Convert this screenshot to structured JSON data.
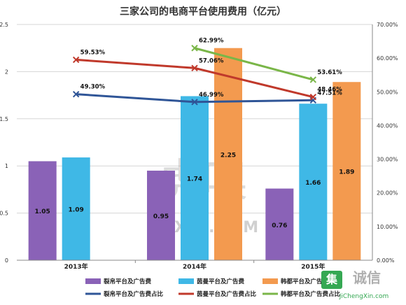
{
  "chart_data": {
    "type": "bar",
    "title": "三家公司的电商平台使用费用（亿元）",
    "categories": [
      "2013年",
      "2014年",
      "2015年"
    ],
    "ylim": [
      0,
      2.5
    ],
    "y_ticks": [
      "0",
      "0.5",
      "1",
      "1.5",
      "2",
      "2.5"
    ],
    "y2lim": [
      0,
      70
    ],
    "y2_ticks": [
      "0.00%",
      "10.00%",
      "20.00%",
      "30.00%",
      "40.00%",
      "50.00%",
      "60.00%",
      "70.00%"
    ],
    "bar_series": [
      {
        "name": "裂帛平台及广告费",
        "color": "#8a62b7",
        "values": [
          1.05,
          0.95,
          0.76
        ],
        "labels": [
          "1.05",
          "0.95",
          "0.76"
        ]
      },
      {
        "name": "茵曼平台及广告费",
        "color": "#3fb8e6",
        "values": [
          1.09,
          1.74,
          1.66
        ],
        "labels": [
          "1.09",
          "1.74",
          "1.66"
        ]
      },
      {
        "name": "韩都平台及广告费",
        "color": "#f39a4f",
        "values": [
          null,
          2.25,
          1.89
        ],
        "labels": [
          "",
          "2.25",
          "1.89"
        ]
      }
    ],
    "line_series": [
      {
        "name": "裂帛平台及广告费占比",
        "color": "#2f5597",
        "values": [
          49.3,
          46.99,
          47.51
        ],
        "labels": [
          "49.30%",
          "46.99%",
          "47.51%"
        ]
      },
      {
        "name": "茵曼平台及广告费占比",
        "color": "#c0392b",
        "values": [
          59.53,
          57.06,
          48.46
        ],
        "labels": [
          "59.53%",
          "57.06%",
          "48.46%"
        ]
      },
      {
        "name": "韩都平台及广告费占比",
        "color": "#7ab648",
        "values": [
          null,
          62.99,
          53.61
        ],
        "labels": [
          "",
          "62.99%",
          "53.61%"
        ]
      }
    ],
    "grid": true,
    "legend_position": "bottom"
  },
  "watermark": {
    "text_cn": "虎嗅",
    "text_en": "HUXIU.COM",
    "logo_text": "集诚信",
    "logo_url": "JiChengXin.com"
  }
}
